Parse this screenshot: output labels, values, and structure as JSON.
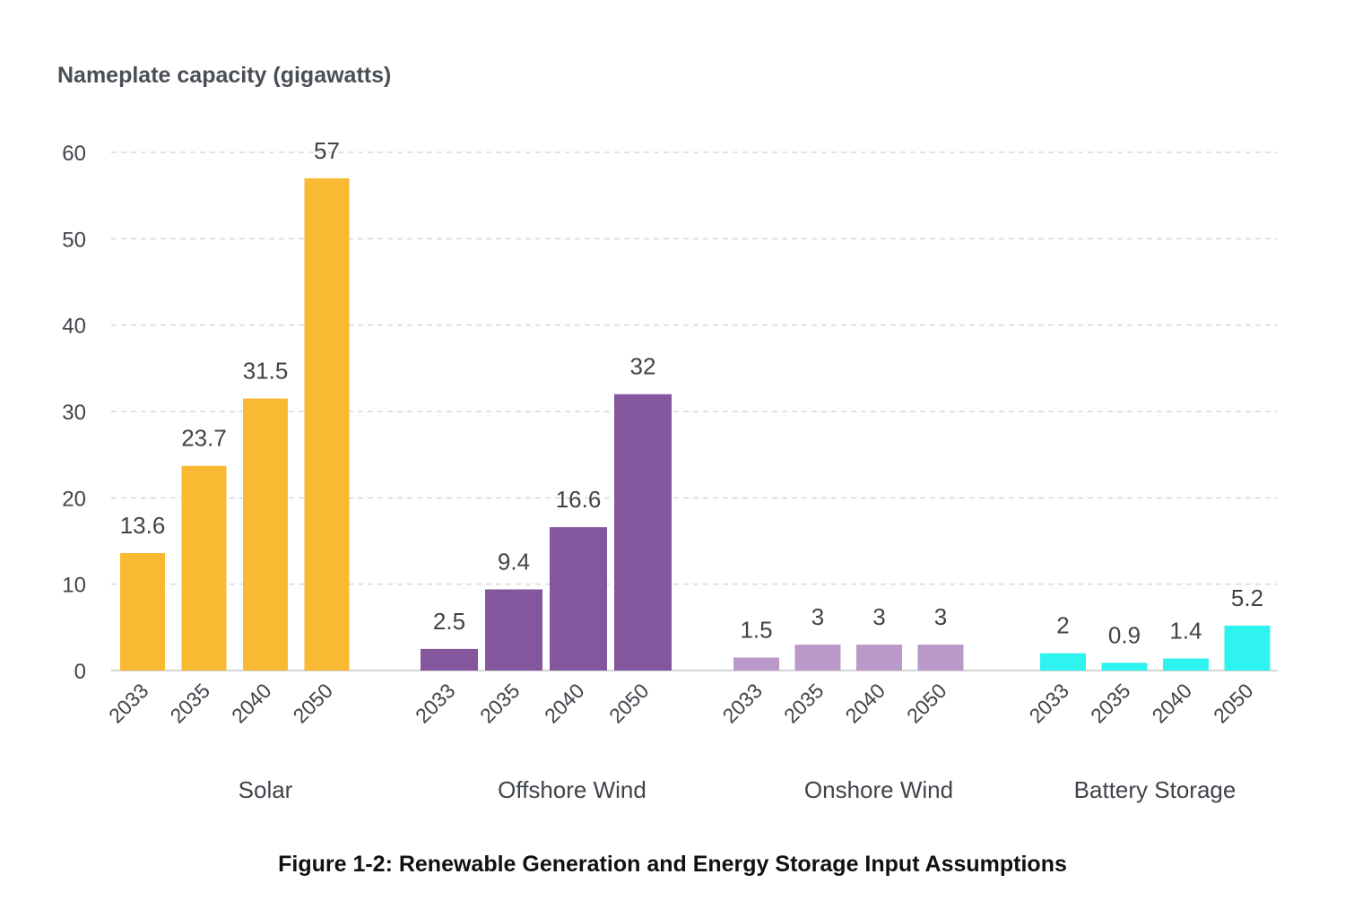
{
  "chart_data": {
    "type": "bar",
    "title": "Nameplate capacity (gigawatts)",
    "caption": "Figure 1-2: Renewable Generation and Energy Storage Input Assumptions",
    "ylim": [
      0,
      60
    ],
    "yticks": [
      "0",
      "10",
      "20",
      "30",
      "40",
      "50",
      "60"
    ],
    "grid": true,
    "groups": [
      {
        "name": "Solar",
        "color": "#f9b932",
        "years": [
          "2033",
          "2035",
          "2040",
          "2050"
        ],
        "values": [
          13.6,
          23.7,
          31.5,
          57
        ],
        "labels": [
          "13.6",
          "23.7",
          "31.5",
          "57"
        ]
      },
      {
        "name": "Offshore Wind",
        "color": "#83569e",
        "years": [
          "2033",
          "2035",
          "2040",
          "2050"
        ],
        "values": [
          2.5,
          9.4,
          16.6,
          32
        ],
        "labels": [
          "2.5",
          "9.4",
          "16.6",
          "32"
        ]
      },
      {
        "name": "Onshore Wind",
        "color": "#b899c9",
        "years": [
          "2033",
          "2035",
          "2040",
          "2050"
        ],
        "values": [
          1.5,
          3,
          3,
          3
        ],
        "labels": [
          "1.5",
          "3",
          "3",
          "3"
        ]
      },
      {
        "name": "Battery Storage",
        "color": "#2ff3ef",
        "years": [
          "2033",
          "2035",
          "2040",
          "2050"
        ],
        "values": [
          2,
          0.9,
          1.4,
          5.2
        ],
        "labels": [
          "2",
          "0.9",
          "1.4",
          "5.2"
        ]
      }
    ]
  }
}
